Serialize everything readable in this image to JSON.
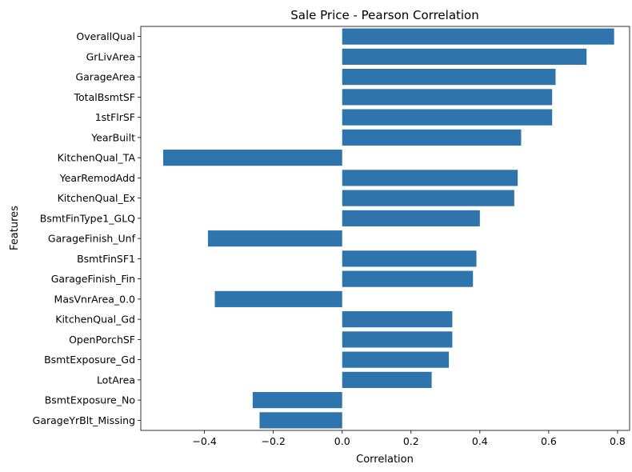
{
  "chart_data": {
    "type": "bar",
    "orientation": "horizontal",
    "title": "Sale Price - Pearson Correlation",
    "xlabel": "Correlation",
    "ylabel": "Features",
    "xlim": [
      -0.585,
      0.835
    ],
    "xticks": [
      -0.4,
      -0.2,
      0.0,
      0.2,
      0.4,
      0.6,
      0.8
    ],
    "xtick_labels": [
      "−0.4",
      "−0.2",
      "0.0",
      "0.2",
      "0.4",
      "0.6",
      "0.8"
    ],
    "grid": false,
    "bar_color": "#2e75ad",
    "categories": [
      "OverallQual",
      "GrLivArea",
      "GarageArea",
      "TotalBsmtSF",
      "1stFlrSF",
      "YearBuilt",
      "KitchenQual_TA",
      "YearRemodAdd",
      "KitchenQual_Ex",
      "BsmtFinType1_GLQ",
      "GarageFinish_Unf",
      "BsmtFinSF1",
      "GarageFinish_Fin",
      "MasVnrArea_0.0",
      "KitchenQual_Gd",
      "OpenPorchSF",
      "BsmtExposure_Gd",
      "LotArea",
      "BsmtExposure_No",
      "GarageYrBlt_Missing"
    ],
    "values": [
      0.79,
      0.71,
      0.62,
      0.61,
      0.61,
      0.52,
      -0.52,
      0.51,
      0.5,
      0.4,
      -0.39,
      0.39,
      0.38,
      -0.37,
      0.32,
      0.32,
      0.31,
      0.26,
      -0.26,
      -0.24
    ]
  }
}
